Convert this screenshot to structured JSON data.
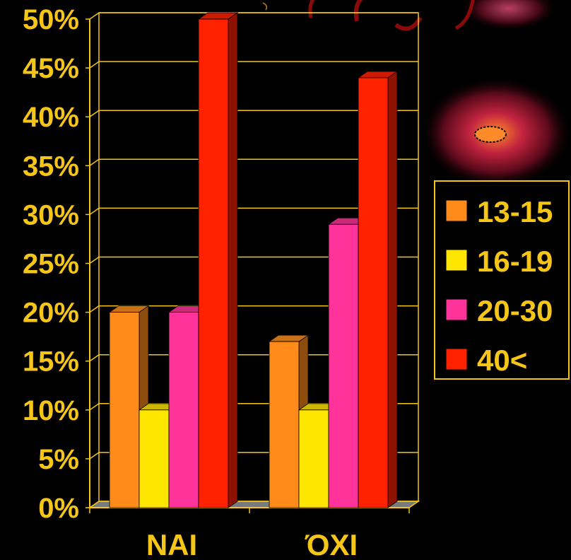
{
  "chart_data": {
    "type": "bar",
    "title": "",
    "xlabel": "",
    "ylabel": "",
    "ylim": [
      0,
      50
    ],
    "yticks": [
      "0%",
      "5%",
      "10%",
      "15%",
      "20%",
      "25%",
      "30%",
      "35%",
      "40%",
      "45%",
      "50%"
    ],
    "categories": [
      "NAI",
      "ΌΧΙ"
    ],
    "series": [
      {
        "name": "13-15",
        "values": [
          20,
          17
        ],
        "color": "#ff8c1a"
      },
      {
        "name": "16-19",
        "values": [
          10,
          10
        ],
        "color": "#ffe600"
      },
      {
        "name": "20-30",
        "values": [
          20,
          29
        ],
        "color": "#ff3399"
      },
      {
        "name": "40<",
        "values": [
          50,
          44
        ],
        "color": "#ff2200"
      }
    ],
    "grid": true,
    "legend_position": "right",
    "text_color": "#f5c518",
    "background": "#000000"
  }
}
